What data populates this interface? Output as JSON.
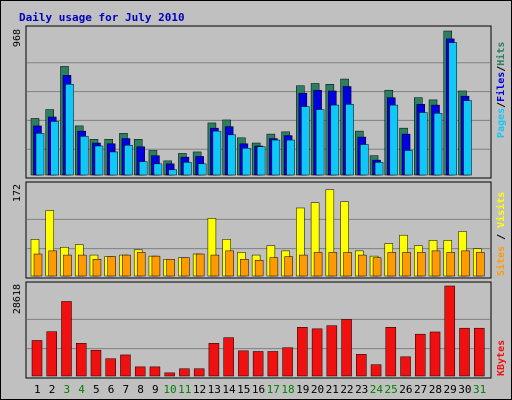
{
  "title": "Daily usage for July 2010",
  "colors": {
    "background": "#c0c0c0",
    "plot": "#c0c0c0",
    "title": "#0000c0",
    "hits": "#2a8060",
    "files": "#0000e0",
    "pages": "#10c8f8",
    "visits": "#ffff00",
    "sites": "#ff9a00",
    "kbytes": "#f01010",
    "weekend_tick": "#008000",
    "tick": "#000000"
  },
  "chart_data": [
    {
      "type": "bar",
      "name": "hits-files-pages",
      "ymax_label": "968",
      "ylim": [
        0,
        968
      ],
      "categories": [
        "1",
        "2",
        "3",
        "4",
        "5",
        "6",
        "7",
        "8",
        "9",
        "10",
        "11",
        "12",
        "13",
        "14",
        "15",
        "16",
        "17",
        "18",
        "19",
        "20",
        "21",
        "22",
        "23",
        "24",
        "25",
        "26",
        "27",
        "28",
        "29",
        "30",
        "31"
      ],
      "weekend": [
        3,
        4,
        10,
        11,
        17,
        18,
        24,
        25,
        31
      ],
      "legend": [
        "Pages",
        "Files",
        "Hits"
      ],
      "series": [
        {
          "name": "Hits",
          "values": [
            380,
            440,
            730,
            330,
            240,
            240,
            280,
            240,
            165,
            95,
            145,
            155,
            350,
            370,
            250,
            215,
            275,
            290,
            600,
            615,
            610,
            645,
            295,
            130,
            570,
            315,
            520,
            505,
            968,
            565,
            0
          ]
        },
        {
          "name": "Files",
          "values": [
            330,
            390,
            670,
            295,
            215,
            210,
            245,
            190,
            130,
            75,
            120,
            125,
            315,
            325,
            210,
            195,
            245,
            265,
            550,
            570,
            565,
            595,
            255,
            100,
            520,
            275,
            475,
            470,
            915,
            530,
            0
          ]
        },
        {
          "name": "Pages",
          "values": [
            280,
            360,
            610,
            260,
            195,
            155,
            200,
            90,
            75,
            35,
            85,
            75,
            295,
            270,
            180,
            190,
            235,
            235,
            460,
            440,
            470,
            475,
            205,
            85,
            470,
            165,
            420,
            415,
            890,
            500,
            0
          ]
        }
      ]
    },
    {
      "type": "bar",
      "name": "visits-sites",
      "ymax_label": "172",
      "ylim": [
        0,
        172
      ],
      "categories": [
        "1",
        "2",
        "3",
        "4",
        "5",
        "6",
        "7",
        "8",
        "9",
        "10",
        "11",
        "12",
        "13",
        "14",
        "15",
        "16",
        "17",
        "18",
        "19",
        "20",
        "21",
        "22",
        "23",
        "24",
        "25",
        "26",
        "27",
        "28",
        "29",
        "30",
        "31"
      ],
      "legend": [
        "Sites",
        "Visits"
      ],
      "series": [
        {
          "name": "Visits",
          "values": [
            70,
            125,
            55,
            60,
            40,
            37,
            40,
            50,
            38,
            32,
            35,
            42,
            110,
            70,
            45,
            40,
            58,
            48,
            130,
            140,
            165,
            142,
            48,
            38,
            62,
            78,
            58,
            68,
            68,
            85,
            52
          ]
        },
        {
          "name": "Sites",
          "values": [
            42,
            48,
            40,
            40,
            32,
            37,
            40,
            45,
            38,
            32,
            35,
            42,
            40,
            48,
            32,
            30,
            35,
            37,
            40,
            45,
            45,
            45,
            40,
            35,
            45,
            45,
            45,
            48,
            45,
            48,
            45
          ]
        }
      ]
    },
    {
      "type": "bar",
      "name": "kbytes",
      "ymax_label": "28618",
      "ylim": [
        0,
        28618
      ],
      "categories": [
        "1",
        "2",
        "3",
        "4",
        "5",
        "6",
        "7",
        "8",
        "9",
        "10",
        "11",
        "12",
        "13",
        "14",
        "15",
        "16",
        "17",
        "18",
        "19",
        "20",
        "21",
        "22",
        "23",
        "24",
        "25",
        "26",
        "27",
        "28",
        "29",
        "30",
        "31"
      ],
      "legend": [
        "KBytes"
      ],
      "series": [
        {
          "name": "KBytes",
          "values": [
            11300,
            14100,
            23700,
            10400,
            8200,
            5500,
            6700,
            2900,
            2900,
            1000,
            2300,
            2300,
            10400,
            12200,
            8000,
            7800,
            7800,
            9000,
            15500,
            15000,
            16000,
            18000,
            6900,
            3600,
            15500,
            6100,
            13300,
            14000,
            28618,
            15200,
            15200
          ]
        }
      ]
    }
  ]
}
